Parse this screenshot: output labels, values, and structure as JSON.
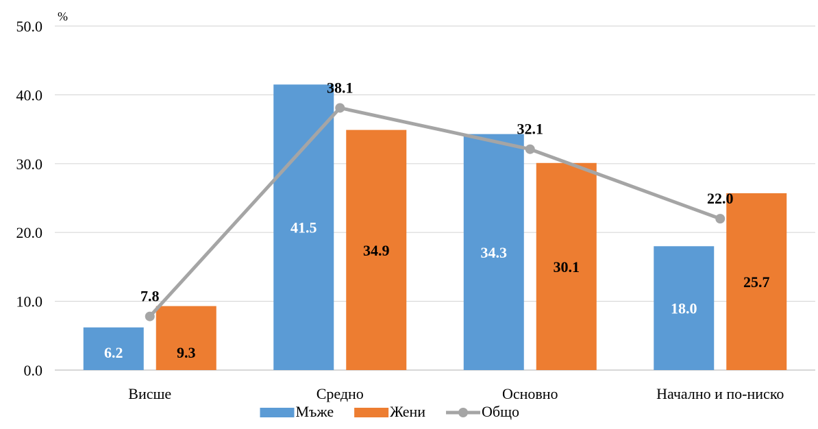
{
  "chart_data": {
    "type": "bar",
    "unit_label": "%",
    "categories": [
      "Висше",
      "Средно",
      "Основно",
      "Начално и по-ниско"
    ],
    "series": [
      {
        "name": "Мъже",
        "kind": "bar",
        "color": "#5B9BD5",
        "label_color": "#ffffff",
        "values": [
          6.2,
          41.5,
          34.3,
          18.0
        ]
      },
      {
        "name": "Жени",
        "kind": "bar",
        "color": "#ED7D31",
        "label_color": "#000000",
        "values": [
          9.3,
          34.9,
          30.1,
          25.7
        ]
      },
      {
        "name": "Общо",
        "kind": "line",
        "color": "#A5A5A5",
        "label_color": "#000000",
        "values": [
          7.8,
          38.1,
          32.1,
          22.0
        ]
      }
    ],
    "ylim": [
      0,
      50
    ],
    "yticks": [
      0,
      10,
      20,
      30,
      40,
      50
    ],
    "ytick_labels": [
      "0.0",
      "10.0",
      "20.0",
      "30.0",
      "40.0",
      "50.0"
    ],
    "value_format_decimals": 1,
    "grid": true,
    "legend_position": "bottom"
  }
}
